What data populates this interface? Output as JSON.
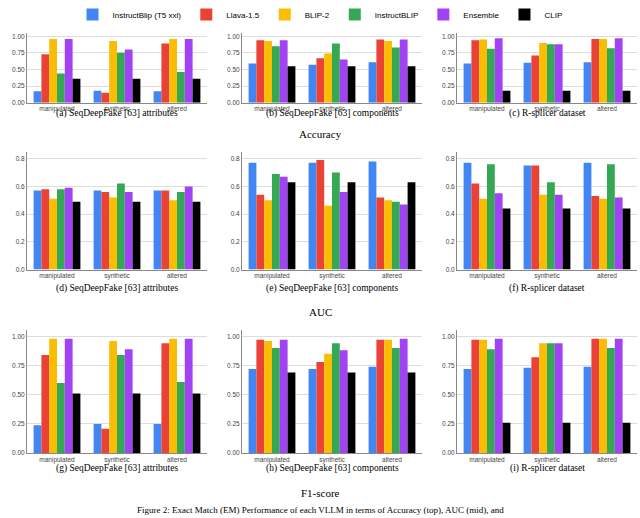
{
  "legend": "top",
  "row_labels": [
    "Accuracy",
    "AUC",
    "F1-score"
  ],
  "caption": "Figure 2: Exact Match (EM) Performance of each VLLM in terms of Accuracy (top), AUC (mid), and",
  "chart_data": [
    {
      "type": "bar",
      "title": "(a) SeqDeepFake [63] attributes",
      "grid": true,
      "categories": [
        "manipulated",
        "synthetic",
        "altered"
      ],
      "ylim": [
        0,
        1.05
      ],
      "yticks": [
        {
          "value": 0,
          "label": "0.00"
        },
        {
          "value": 0.25,
          "label": "0.25"
        },
        {
          "value": 0.5,
          "label": "0.50"
        },
        {
          "value": 0.75,
          "label": "0.75"
        },
        {
          "value": 1,
          "label": "1.00"
        }
      ],
      "series": [
        {
          "name": "InstructBlip (T5 xxl)",
          "color": "#4285F4",
          "values": [
            0.17,
            0.18,
            0.17
          ]
        },
        {
          "name": "Llava-1.5",
          "color": "#EA4335",
          "values": [
            0.73,
            0.15,
            0.89
          ]
        },
        {
          "name": "BLIP-2",
          "color": "#FBBC04",
          "values": [
            0.96,
            0.93,
            0.96
          ]
        },
        {
          "name": "InstructBLIP",
          "color": "#34A853",
          "values": [
            0.44,
            0.75,
            0.46
          ]
        },
        {
          "name": "Ensemble",
          "color": "#A142F4",
          "values": [
            0.96,
            0.8,
            0.96
          ]
        },
        {
          "name": "CLIP",
          "color": "#000000",
          "values": [
            0.36,
            0.36,
            0.36
          ]
        }
      ]
    },
    {
      "type": "bar",
      "title": "(b) SeqDeepFake [63] components",
      "grid": true,
      "categories": [
        "manipulated",
        "synthetic",
        "altered"
      ],
      "ylim": [
        0,
        1.05
      ],
      "yticks": [
        {
          "value": 0,
          "label": "0.00"
        },
        {
          "value": 0.25,
          "label": "0.25"
        },
        {
          "value": 0.5,
          "label": "0.50"
        },
        {
          "value": 0.75,
          "label": "0.75"
        },
        {
          "value": 1,
          "label": "1.00"
        }
      ],
      "series": [
        {
          "name": "InstructBlip (T5 xxl)",
          "color": "#4285F4",
          "values": [
            0.59,
            0.57,
            0.61
          ]
        },
        {
          "name": "Llava-1.5",
          "color": "#EA4335",
          "values": [
            0.94,
            0.67,
            0.95
          ]
        },
        {
          "name": "BLIP-2",
          "color": "#FBBC04",
          "values": [
            0.93,
            0.74,
            0.93
          ]
        },
        {
          "name": "InstructBLIP",
          "color": "#34A853",
          "values": [
            0.85,
            0.89,
            0.83
          ]
        },
        {
          "name": "Ensemble",
          "color": "#A142F4",
          "values": [
            0.94,
            0.65,
            0.95
          ]
        },
        {
          "name": "CLIP",
          "color": "#000000",
          "values": [
            0.55,
            0.55,
            0.55
          ]
        }
      ]
    },
    {
      "type": "bar",
      "title": "(c) R-splicer dataset",
      "grid": true,
      "categories": [
        "manipulated",
        "synthetic",
        "altered"
      ],
      "ylim": [
        0,
        1.05
      ],
      "yticks": [
        {
          "value": 0,
          "label": "0.00"
        },
        {
          "value": 0.25,
          "label": "0.25"
        },
        {
          "value": 0.5,
          "label": "0.50"
        },
        {
          "value": 0.75,
          "label": "0.75"
        },
        {
          "value": 1,
          "label": "1.00"
        }
      ],
      "series": [
        {
          "name": "InstructBlip (T5 xxl)",
          "color": "#4285F4",
          "values": [
            0.59,
            0.6,
            0.61
          ]
        },
        {
          "name": "Llava-1.5",
          "color": "#EA4335",
          "values": [
            0.94,
            0.71,
            0.96
          ]
        },
        {
          "name": "BLIP-2",
          "color": "#FBBC04",
          "values": [
            0.95,
            0.9,
            0.96
          ]
        },
        {
          "name": "InstructBLIP",
          "color": "#34A853",
          "values": [
            0.81,
            0.88,
            0.82
          ]
        },
        {
          "name": "Ensemble",
          "color": "#A142F4",
          "values": [
            0.97,
            0.88,
            0.97
          ]
        },
        {
          "name": "CLIP",
          "color": "#000000",
          "values": [
            0.18,
            0.18,
            0.18
          ]
        }
      ]
    },
    {
      "type": "bar",
      "title": "(d) SeqDeepFake [63] attributes",
      "grid": true,
      "categories": [
        "manipulated",
        "synthetic",
        "altered"
      ],
      "ylim": [
        0,
        0.85
      ],
      "yticks": [
        {
          "value": 0,
          "label": "0.0"
        },
        {
          "value": 0.2,
          "label": "0.2"
        },
        {
          "value": 0.4,
          "label": "0.4"
        },
        {
          "value": 0.6,
          "label": "0.6"
        },
        {
          "value": 0.8,
          "label": "0.8"
        }
      ],
      "series": [
        {
          "name": "InstructBlip (T5 xxl)",
          "color": "#4285F4",
          "values": [
            0.57,
            0.57,
            0.57
          ]
        },
        {
          "name": "Llava-1.5",
          "color": "#EA4335",
          "values": [
            0.58,
            0.56,
            0.57
          ]
        },
        {
          "name": "BLIP-2",
          "color": "#FBBC04",
          "values": [
            0.51,
            0.52,
            0.5
          ]
        },
        {
          "name": "InstructBLIP",
          "color": "#34A853",
          "values": [
            0.58,
            0.62,
            0.56
          ]
        },
        {
          "name": "Ensemble",
          "color": "#A142F4",
          "values": [
            0.59,
            0.56,
            0.6
          ]
        },
        {
          "name": "CLIP",
          "color": "#000000",
          "values": [
            0.49,
            0.49,
            0.49
          ]
        }
      ]
    },
    {
      "type": "bar",
      "title": "(e) SeqDeepFake [63] components",
      "grid": true,
      "categories": [
        "manipulated",
        "synthetic",
        "altered"
      ],
      "ylim": [
        0,
        0.85
      ],
      "yticks": [
        {
          "value": 0,
          "label": "0.0"
        },
        {
          "value": 0.2,
          "label": "0.2"
        },
        {
          "value": 0.4,
          "label": "0.4"
        },
        {
          "value": 0.6,
          "label": "0.6"
        },
        {
          "value": 0.8,
          "label": "0.8"
        }
      ],
      "series": [
        {
          "name": "InstructBlip (T5 xxl)",
          "color": "#4285F4",
          "values": [
            0.77,
            0.77,
            0.78
          ]
        },
        {
          "name": "Llava-1.5",
          "color": "#EA4335",
          "values": [
            0.54,
            0.79,
            0.52
          ]
        },
        {
          "name": "BLIP-2",
          "color": "#FBBC04",
          "values": [
            0.5,
            0.46,
            0.5
          ]
        },
        {
          "name": "InstructBLIP",
          "color": "#34A853",
          "values": [
            0.69,
            0.7,
            0.49
          ]
        },
        {
          "name": "Ensemble",
          "color": "#A142F4",
          "values": [
            0.67,
            0.56,
            0.47
          ]
        },
        {
          "name": "CLIP",
          "color": "#000000",
          "values": [
            0.63,
            0.63,
            0.63
          ]
        }
      ]
    },
    {
      "type": "bar",
      "title": "(f) R-splicer dataset",
      "grid": true,
      "categories": [
        "manipulated",
        "synthetic",
        "altered"
      ],
      "ylim": [
        0,
        0.85
      ],
      "yticks": [
        {
          "value": 0,
          "label": "0.0"
        },
        {
          "value": 0.2,
          "label": "0.2"
        },
        {
          "value": 0.4,
          "label": "0.4"
        },
        {
          "value": 0.6,
          "label": "0.6"
        },
        {
          "value": 0.8,
          "label": "0.8"
        }
      ],
      "series": [
        {
          "name": "InstructBlip (T5 xxl)",
          "color": "#4285F4",
          "values": [
            0.77,
            0.75,
            0.77
          ]
        },
        {
          "name": "Llava-1.5",
          "color": "#EA4335",
          "values": [
            0.62,
            0.75,
            0.53
          ]
        },
        {
          "name": "BLIP-2",
          "color": "#FBBC04",
          "values": [
            0.51,
            0.54,
            0.51
          ]
        },
        {
          "name": "InstructBLIP",
          "color": "#34A853",
          "values": [
            0.76,
            0.63,
            0.76
          ]
        },
        {
          "name": "Ensemble",
          "color": "#A142F4",
          "values": [
            0.55,
            0.54,
            0.52
          ]
        },
        {
          "name": "CLIP",
          "color": "#000000",
          "values": [
            0.44,
            0.44,
            0.44
          ]
        }
      ]
    },
    {
      "type": "bar",
      "title": "(g) SeqDeepFake [63] attributes",
      "grid": true,
      "categories": [
        "manipulated",
        "synthetic",
        "altered"
      ],
      "ylim": [
        0,
        1.05
      ],
      "yticks": [
        {
          "value": 0,
          "label": "0.00"
        },
        {
          "value": 0.25,
          "label": "0.25"
        },
        {
          "value": 0.5,
          "label": "0.50"
        },
        {
          "value": 0.75,
          "label": "0.75"
        },
        {
          "value": 1,
          "label": "1.00"
        }
      ],
      "series": [
        {
          "name": "InstructBlip (T5 xxl)",
          "color": "#4285F4",
          "values": [
            0.24,
            0.25,
            0.25
          ]
        },
        {
          "name": "Llava-1.5",
          "color": "#EA4335",
          "values": [
            0.84,
            0.21,
            0.94
          ]
        },
        {
          "name": "BLIP-2",
          "color": "#FBBC04",
          "values": [
            0.98,
            0.96,
            0.98
          ]
        },
        {
          "name": "InstructBLIP",
          "color": "#34A853",
          "values": [
            0.6,
            0.84,
            0.61
          ]
        },
        {
          "name": "Ensemble",
          "color": "#A142F4",
          "values": [
            0.98,
            0.89,
            0.98
          ]
        },
        {
          "name": "CLIP",
          "color": "#000000",
          "values": [
            0.51,
            0.51,
            0.51
          ]
        }
      ]
    },
    {
      "type": "bar",
      "title": "(h) SeqDeepFake [63] components",
      "grid": true,
      "categories": [
        "manipulated",
        "synthetic",
        "altered"
      ],
      "ylim": [
        0,
        1.05
      ],
      "yticks": [
        {
          "value": 0,
          "label": "0.00"
        },
        {
          "value": 0.25,
          "label": "0.25"
        },
        {
          "value": 0.5,
          "label": "0.50"
        },
        {
          "value": 0.75,
          "label": "0.75"
        },
        {
          "value": 1,
          "label": "1.00"
        }
      ],
      "series": [
        {
          "name": "InstructBlip (T5 xxl)",
          "color": "#4285F4",
          "values": [
            0.72,
            0.72,
            0.74
          ]
        },
        {
          "name": "Llava-1.5",
          "color": "#EA4335",
          "values": [
            0.97,
            0.78,
            0.97
          ]
        },
        {
          "name": "BLIP-2",
          "color": "#FBBC04",
          "values": [
            0.96,
            0.85,
            0.97
          ]
        },
        {
          "name": "InstructBLIP",
          "color": "#34A853",
          "values": [
            0.9,
            0.94,
            0.9
          ]
        },
        {
          "name": "Ensemble",
          "color": "#A142F4",
          "values": [
            0.97,
            0.88,
            0.98
          ]
        },
        {
          "name": "CLIP",
          "color": "#000000",
          "values": [
            0.69,
            0.69,
            0.69
          ]
        }
      ]
    },
    {
      "type": "bar",
      "title": "(i) R-splicer dataset",
      "grid": true,
      "categories": [
        "manipulated",
        "synthetic",
        "altered"
      ],
      "ylim": [
        0,
        1.05
      ],
      "yticks": [
        {
          "value": 0,
          "label": "0.00"
        },
        {
          "value": 0.25,
          "label": "0.25"
        },
        {
          "value": 0.5,
          "label": "0.50"
        },
        {
          "value": 0.75,
          "label": "0.75"
        },
        {
          "value": 1,
          "label": "1.00"
        }
      ],
      "series": [
        {
          "name": "InstructBlip (T5 xxl)",
          "color": "#4285F4",
          "values": [
            0.72,
            0.73,
            0.74
          ]
        },
        {
          "name": "Llava-1.5",
          "color": "#EA4335",
          "values": [
            0.97,
            0.82,
            0.98
          ]
        },
        {
          "name": "BLIP-2",
          "color": "#FBBC04",
          "values": [
            0.97,
            0.94,
            0.98
          ]
        },
        {
          "name": "InstructBLIP",
          "color": "#34A853",
          "values": [
            0.89,
            0.94,
            0.9
          ]
        },
        {
          "name": "Ensemble",
          "color": "#A142F4",
          "values": [
            0.98,
            0.94,
            0.98
          ]
        },
        {
          "name": "CLIP",
          "color": "#000000",
          "values": [
            0.26,
            0.26,
            0.26
          ]
        }
      ]
    }
  ]
}
